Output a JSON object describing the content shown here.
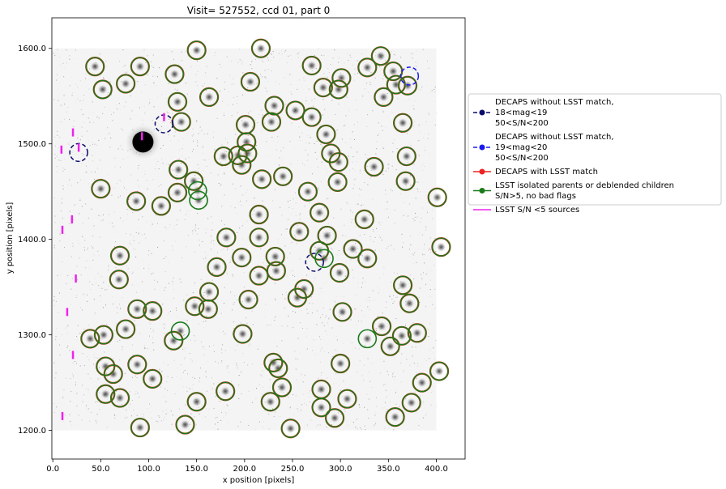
{
  "chart_data": {
    "type": "scatter",
    "title": "Visit= 527552, ccd 01, part 0",
    "xlabel": "x position [pixels]",
    "ylabel": "y position [pixels]",
    "xlim": [
      -1,
      430
    ],
    "ylim": [
      1170,
      1632
    ],
    "xticks": [
      0.0,
      50.0,
      100.0,
      150.0,
      200.0,
      250.0,
      300.0,
      350.0,
      400.0
    ],
    "xtick_labels": [
      "0.0",
      "50.0",
      "100.0",
      "150.0",
      "200.0",
      "250.0",
      "300.0",
      "350.0",
      "400.0"
    ],
    "yticks": [
      1200.0,
      1300.0,
      1400.0,
      1500.0,
      1600.0
    ],
    "ytick_labels": [
      "1200.0",
      "1300.0",
      "1400.0",
      "1500.0",
      "1600.0"
    ],
    "grid": false,
    "legend_position": "outside-right",
    "legend": [
      {
        "id": "decaps18",
        "lines": [
          "DECAPS without LSST match,",
          "18<mag<19",
          "50<S/N<200"
        ]
      },
      {
        "id": "decaps19",
        "lines": [
          "DECAPS without LSST match,",
          "19<mag<20",
          "50<S/N<200"
        ]
      },
      {
        "id": "decapsmatch",
        "lines": [
          "DECAPS with LSST match"
        ]
      },
      {
        "id": "lsst",
        "lines": [
          "LSST  isolated parents or deblended children",
          " S/N>5, no bad flags"
        ]
      },
      {
        "id": "lowsn",
        "lines": [
          "LSST S/N <5  sources"
        ]
      }
    ],
    "series": [
      {
        "id": "decaps18",
        "marker": "dashed-circle",
        "color": "#0b0b6b",
        "points": [
          [
            27,
            1491
          ],
          [
            116,
            1521
          ],
          [
            273,
            1376
          ]
        ]
      },
      {
        "id": "decaps19",
        "marker": "dashed-circle",
        "color": "#1a1aee",
        "points": [
          [
            372,
            1571
          ]
        ]
      },
      {
        "id": "decapsmatch",
        "marker": "circle",
        "color": "#ee2222",
        "points": [
          [
            44,
            1581
          ],
          [
            52,
            1557
          ],
          [
            76,
            1563
          ],
          [
            91,
            1581
          ],
          [
            127,
            1573
          ],
          [
            150,
            1598
          ],
          [
            163,
            1549
          ],
          [
            206,
            1565
          ],
          [
            217,
            1600
          ],
          [
            270,
            1582
          ],
          [
            282,
            1559
          ],
          [
            298,
            1557
          ],
          [
            301,
            1569
          ],
          [
            328,
            1580
          ],
          [
            342,
            1592
          ],
          [
            355,
            1576
          ],
          [
            345,
            1549
          ],
          [
            358,
            1562
          ],
          [
            370,
            1561
          ],
          [
            130,
            1544
          ],
          [
            134,
            1523
          ],
          [
            201,
            1520
          ],
          [
            228,
            1523
          ],
          [
            231,
            1540
          ],
          [
            253,
            1535
          ],
          [
            270,
            1528
          ],
          [
            285,
            1510
          ],
          [
            365,
            1522
          ],
          [
            202,
            1502
          ],
          [
            193,
            1488
          ],
          [
            203,
            1490
          ],
          [
            178,
            1487
          ],
          [
            197,
            1478
          ],
          [
            131,
            1473
          ],
          [
            290,
            1490
          ],
          [
            298,
            1481
          ],
          [
            335,
            1476
          ],
          [
            369,
            1487
          ],
          [
            147,
            1461
          ],
          [
            218,
            1463
          ],
          [
            240,
            1466
          ],
          [
            266,
            1450
          ],
          [
            297,
            1460
          ],
          [
            368,
            1461
          ],
          [
            50,
            1453
          ],
          [
            130,
            1449
          ],
          [
            87,
            1440
          ],
          [
            113,
            1435
          ],
          [
            401,
            1444
          ],
          [
            215,
            1426
          ],
          [
            278,
            1428
          ],
          [
            325,
            1421
          ],
          [
            181,
            1402
          ],
          [
            215,
            1402
          ],
          [
            257,
            1408
          ],
          [
            286,
            1404
          ],
          [
            313,
            1390
          ],
          [
            405,
            1392
          ],
          [
            70,
            1383
          ],
          [
            197,
            1381
          ],
          [
            232,
            1382
          ],
          [
            278,
            1388
          ],
          [
            171,
            1371
          ],
          [
            233,
            1367
          ],
          [
            299,
            1365
          ],
          [
            328,
            1380
          ],
          [
            69,
            1358
          ],
          [
            215,
            1362
          ],
          [
            262,
            1348
          ],
          [
            365,
            1352
          ],
          [
            163,
            1345
          ],
          [
            204,
            1337
          ],
          [
            255,
            1339
          ],
          [
            372,
            1333
          ],
          [
            88,
            1327
          ],
          [
            104,
            1325
          ],
          [
            148,
            1330
          ],
          [
            162,
            1327
          ],
          [
            302,
            1324
          ],
          [
            39,
            1296
          ],
          [
            53,
            1300
          ],
          [
            76,
            1306
          ],
          [
            126,
            1294
          ],
          [
            198,
            1301
          ],
          [
            343,
            1309
          ],
          [
            352,
            1288
          ],
          [
            364,
            1299
          ],
          [
            380,
            1302
          ],
          [
            55,
            1267
          ],
          [
            63,
            1259
          ],
          [
            88,
            1269
          ],
          [
            235,
            1265
          ],
          [
            230,
            1271
          ],
          [
            300,
            1270
          ],
          [
            104,
            1254
          ],
          [
            55,
            1238
          ],
          [
            70,
            1234
          ],
          [
            180,
            1241
          ],
          [
            239,
            1245
          ],
          [
            280,
            1243
          ],
          [
            307,
            1233
          ],
          [
            385,
            1250
          ],
          [
            403,
            1262
          ],
          [
            150,
            1230
          ],
          [
            227,
            1230
          ],
          [
            280,
            1224
          ],
          [
            294,
            1213
          ],
          [
            357,
            1214
          ],
          [
            374,
            1229
          ],
          [
            91,
            1203
          ],
          [
            138,
            1206
          ],
          [
            248,
            1202
          ]
        ]
      },
      {
        "id": "lsst",
        "marker": "circle",
        "color": "#1a7a1a",
        "points": [
          [
            44,
            1581
          ],
          [
            52,
            1557
          ],
          [
            76,
            1563
          ],
          [
            91,
            1581
          ],
          [
            127,
            1573
          ],
          [
            150,
            1598
          ],
          [
            163,
            1549
          ],
          [
            206,
            1565
          ],
          [
            217,
            1600
          ],
          [
            270,
            1582
          ],
          [
            282,
            1559
          ],
          [
            298,
            1557
          ],
          [
            301,
            1569
          ],
          [
            328,
            1580
          ],
          [
            342,
            1592
          ],
          [
            355,
            1576
          ],
          [
            345,
            1549
          ],
          [
            358,
            1562
          ],
          [
            370,
            1561
          ],
          [
            130,
            1544
          ],
          [
            134,
            1523
          ],
          [
            201,
            1520
          ],
          [
            228,
            1523
          ],
          [
            231,
            1540
          ],
          [
            253,
            1535
          ],
          [
            270,
            1528
          ],
          [
            285,
            1510
          ],
          [
            365,
            1522
          ],
          [
            202,
            1502
          ],
          [
            193,
            1488
          ],
          [
            203,
            1490
          ],
          [
            178,
            1487
          ],
          [
            197,
            1478
          ],
          [
            131,
            1473
          ],
          [
            290,
            1490
          ],
          [
            298,
            1481
          ],
          [
            335,
            1476
          ],
          [
            369,
            1487
          ],
          [
            147,
            1461
          ],
          [
            218,
            1463
          ],
          [
            240,
            1466
          ],
          [
            266,
            1450
          ],
          [
            297,
            1460
          ],
          [
            368,
            1461
          ],
          [
            50,
            1453
          ],
          [
            130,
            1449
          ],
          [
            87,
            1440
          ],
          [
            113,
            1435
          ],
          [
            401,
            1444
          ],
          [
            215,
            1426
          ],
          [
            278,
            1428
          ],
          [
            325,
            1421
          ],
          [
            181,
            1402
          ],
          [
            215,
            1402
          ],
          [
            257,
            1408
          ],
          [
            286,
            1404
          ],
          [
            313,
            1390
          ],
          [
            405,
            1392
          ],
          [
            70,
            1383
          ],
          [
            197,
            1381
          ],
          [
            232,
            1382
          ],
          [
            278,
            1388
          ],
          [
            171,
            1371
          ],
          [
            233,
            1367
          ],
          [
            299,
            1365
          ],
          [
            328,
            1380
          ],
          [
            69,
            1358
          ],
          [
            215,
            1362
          ],
          [
            262,
            1348
          ],
          [
            365,
            1352
          ],
          [
            163,
            1345
          ],
          [
            204,
            1337
          ],
          [
            255,
            1339
          ],
          [
            372,
            1333
          ],
          [
            88,
            1327
          ],
          [
            104,
            1325
          ],
          [
            148,
            1330
          ],
          [
            162,
            1327
          ],
          [
            302,
            1324
          ],
          [
            39,
            1296
          ],
          [
            53,
            1300
          ],
          [
            76,
            1306
          ],
          [
            126,
            1294
          ],
          [
            198,
            1301
          ],
          [
            343,
            1309
          ],
          [
            352,
            1288
          ],
          [
            364,
            1299
          ],
          [
            380,
            1302
          ],
          [
            55,
            1267
          ],
          [
            63,
            1259
          ],
          [
            88,
            1269
          ],
          [
            235,
            1265
          ],
          [
            230,
            1271
          ],
          [
            300,
            1270
          ],
          [
            104,
            1254
          ],
          [
            55,
            1238
          ],
          [
            70,
            1234
          ],
          [
            180,
            1241
          ],
          [
            239,
            1245
          ],
          [
            280,
            1243
          ],
          [
            307,
            1233
          ],
          [
            385,
            1250
          ],
          [
            403,
            1262
          ],
          [
            150,
            1230
          ],
          [
            227,
            1230
          ],
          [
            280,
            1224
          ],
          [
            294,
            1213
          ],
          [
            357,
            1214
          ],
          [
            374,
            1229
          ],
          [
            91,
            1203
          ],
          [
            138,
            1206
          ],
          [
            248,
            1202
          ],
          [
            151,
            1451
          ],
          [
            152,
            1441
          ],
          [
            133,
            1304
          ],
          [
            328,
            1296
          ],
          [
            283,
            1380
          ]
        ]
      },
      {
        "id": "lowsn",
        "marker": "vline",
        "color": "#ee22ee",
        "points": [
          [
            21,
            1512
          ],
          [
            93,
            1508
          ],
          [
            116,
            1528
          ],
          [
            9,
            1494
          ],
          [
            27,
            1496
          ],
          [
            10,
            1410
          ],
          [
            20,
            1421
          ],
          [
            24,
            1359
          ],
          [
            15,
            1324
          ],
          [
            21,
            1279
          ],
          [
            10,
            1215
          ]
        ]
      }
    ]
  }
}
